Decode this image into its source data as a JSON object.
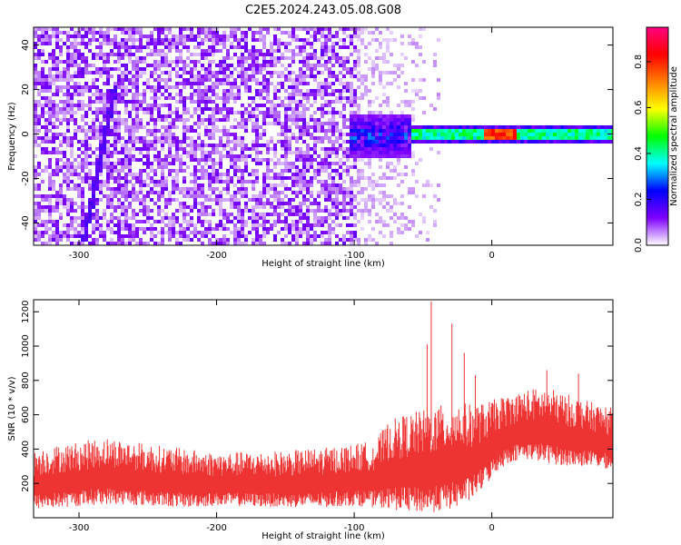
{
  "title": "C2E5.2024.243.05.08.G08",
  "chart_data": [
    {
      "type": "heatmap",
      "xlabel": "Height of straight line (km)",
      "ylabel": "Frequency (Hz)",
      "xlim": [
        -333,
        88
      ],
      "ylim": [
        -50,
        48
      ],
      "x_ticks": [
        -300,
        -200,
        -100,
        0
      ],
      "x_tick_labels": [
        "-300",
        "-200",
        "-100",
        "0"
      ],
      "y_ticks": [
        -40,
        -20,
        0,
        20,
        40
      ],
      "y_tick_labels": [
        "-40",
        "-20",
        "0",
        "20",
        "40"
      ],
      "colorbar": {
        "label": "Normalized spectral amplitude",
        "range": [
          0.0,
          0.95
        ],
        "ticks": [
          0.0,
          0.2,
          0.4,
          0.6,
          0.8
        ],
        "tick_labels": [
          "0.0",
          "0.2",
          "0.4",
          "0.6",
          "0.8"
        ],
        "colors": [
          "#ffffff",
          "#7f00ff",
          "#0000ff",
          "#00ffff",
          "#00ff00",
          "#ffff00",
          "#ff7f00",
          "#ff0000",
          "#ff0080"
        ]
      },
      "features": {
        "noise_region_x": [
          -333,
          -100
        ],
        "turbulent_region_x": [
          -105,
          -60
        ],
        "signal_line_frequency_hz": 1,
        "signal_line_x": [
          -60,
          88
        ],
        "diagonal_streak": {
          "x": [
            -298,
            -275
          ],
          "y": [
            -48,
            22
          ]
        }
      }
    },
    {
      "type": "area",
      "xlabel": "Height of straight line (km)",
      "ylabel": "SNR (10 * v/v)",
      "xlim": [
        -333,
        88
      ],
      "ylim": [
        0,
        1270
      ],
      "x_ticks": [
        -300,
        -200,
        -100,
        0
      ],
      "x_tick_labels": [
        "-300",
        "-200",
        "-100",
        "0"
      ],
      "y_ticks": [
        200,
        400,
        600,
        800,
        1000,
        1200
      ],
      "y_tick_labels": [
        "200",
        "400",
        "600",
        "800",
        "1000",
        "1200"
      ],
      "color": "#ee3333",
      "envelope": {
        "x": [
          -333,
          -310,
          -280,
          -250,
          -220,
          -200,
          -150,
          -120,
          -100,
          -85,
          -75,
          -65,
          -55,
          -45,
          -35,
          -25,
          -15,
          -5,
          5,
          15,
          25,
          40,
          55,
          70,
          88
        ],
        "upper": [
          400,
          430,
          470,
          430,
          400,
          380,
          390,
          410,
          430,
          450,
          560,
          600,
          620,
          640,
          660,
          680,
          660,
          670,
          700,
          720,
          750,
          760,
          720,
          680,
          640
        ],
        "lower": [
          50,
          60,
          80,
          70,
          60,
          70,
          60,
          60,
          70,
          60,
          50,
          40,
          30,
          30,
          40,
          60,
          100,
          180,
          280,
          330,
          340,
          320,
          300,
          300,
          280
        ]
      },
      "peaks": [
        {
          "x": -47,
          "y": 1010
        },
        {
          "x": -44,
          "y": 1260
        },
        {
          "x": -29,
          "y": 1130
        },
        {
          "x": -20,
          "y": 960
        },
        {
          "x": -12,
          "y": 830
        },
        {
          "x": 40,
          "y": 860
        },
        {
          "x": 63,
          "y": 840
        }
      ]
    }
  ]
}
